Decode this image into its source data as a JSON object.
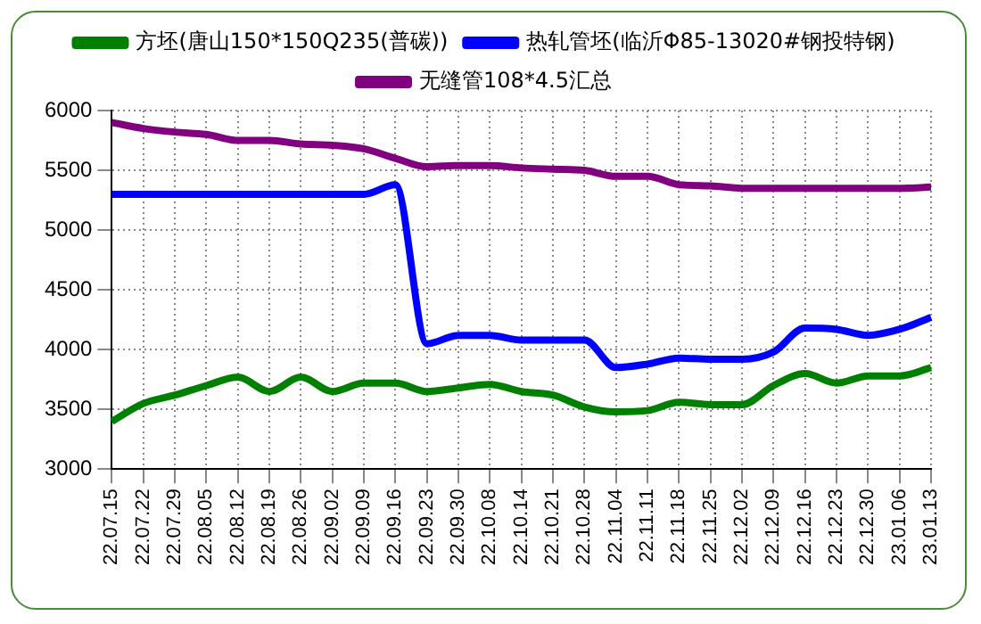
{
  "chart_data": {
    "type": "line",
    "categories": [
      "22.07.15",
      "22.07.22",
      "22.07.29",
      "22.08.05",
      "22.08.12",
      "22.08.19",
      "22.08.26",
      "22.09.02",
      "22.09.09",
      "22.09.16",
      "22.09.23",
      "22.09.30",
      "22.10.08",
      "22.10.14",
      "22.10.21",
      "22.10.28",
      "22.11.04",
      "22.11.11",
      "22.11.18",
      "22.11.25",
      "22.12.02",
      "22.12.09",
      "22.12.16",
      "22.12.23",
      "22.12.30",
      "23.01.06",
      "23.01.13"
    ],
    "series": [
      {
        "name": "方坯(唐山150*150Q235(普碳))",
        "color": "#008000",
        "values": [
          3400,
          3550,
          3620,
          3700,
          3770,
          3650,
          3770,
          3650,
          3720,
          3720,
          3650,
          3680,
          3710,
          3650,
          3620,
          3520,
          3480,
          3490,
          3560,
          3540,
          3540,
          3700,
          3800,
          3720,
          3780,
          3780,
          3850
        ]
      },
      {
        "name": "热轧管坯(临沂Φ85-13020#钢投特钢)",
        "color": "#0000ff",
        "values": [
          5300,
          5300,
          5300,
          5300,
          5300,
          5300,
          5300,
          5300,
          5300,
          5380,
          4050,
          4120,
          4120,
          4080,
          4080,
          4080,
          3850,
          3880,
          3930,
          3920,
          3920,
          3980,
          4180,
          4170,
          4120,
          4170,
          4270
        ]
      },
      {
        "name": "无缝管108*4.5汇总",
        "color": "#800080",
        "values": [
          5900,
          5850,
          5820,
          5800,
          5750,
          5750,
          5720,
          5710,
          5680,
          5600,
          5530,
          5540,
          5540,
          5520,
          5510,
          5500,
          5450,
          5450,
          5380,
          5370,
          5350,
          5350,
          5350,
          5350,
          5350,
          5350,
          5360
        ]
      }
    ],
    "ylim": [
      3000,
      6000
    ],
    "yticks": [
      3000,
      3500,
      4000,
      4500,
      5000,
      5500,
      6000
    ],
    "grid": true,
    "legend": "top",
    "marker": "none",
    "line_style": "solid"
  }
}
